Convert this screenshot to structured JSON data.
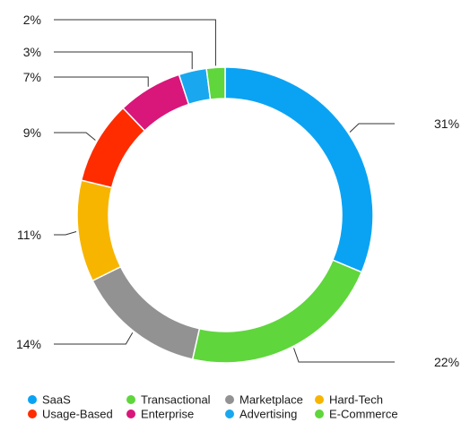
{
  "chart_data": {
    "type": "pie",
    "variant": "donut",
    "categories": [
      "SaaS",
      "Transactional",
      "Marketplace",
      "Hard-Tech",
      "Usage-Based",
      "Enterprise",
      "Advertising",
      "E-Commerce"
    ],
    "values": [
      31,
      22,
      14,
      11,
      9,
      7,
      3,
      2
    ],
    "value_labels": [
      "31%",
      "22%",
      "14%",
      "11%",
      "9%",
      "7%",
      "3%",
      "2%"
    ],
    "colors": [
      "#0aa3f4",
      "#5fd63c",
      "#929292",
      "#f7b500",
      "#ff2c00",
      "#d9167a",
      "#19a8f0",
      "#5fd63c"
    ],
    "legend_position": "bottom",
    "title": ""
  }
}
